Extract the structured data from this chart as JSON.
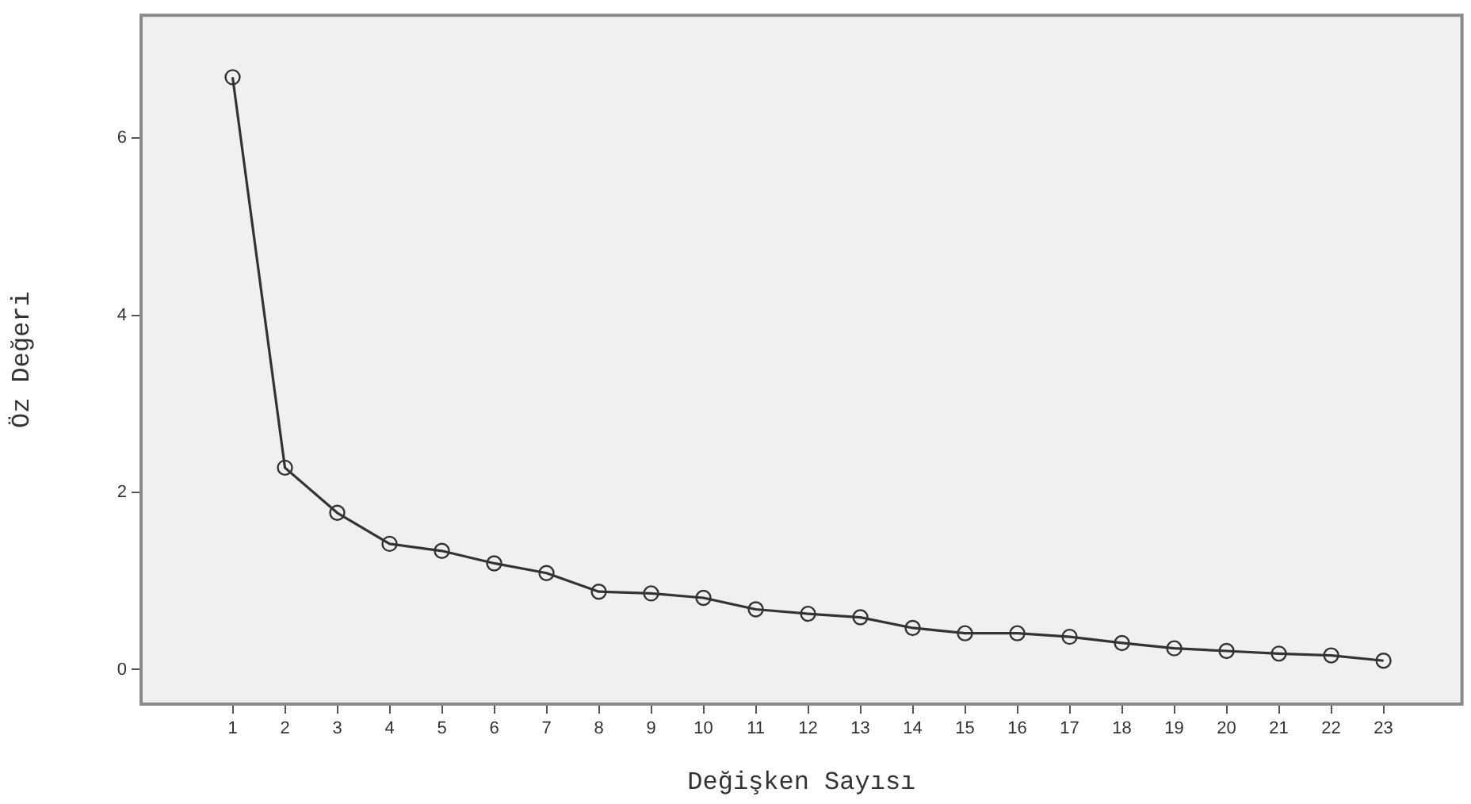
{
  "chart_data": {
    "type": "line",
    "xlabel": "Değişken Sayısı",
    "ylabel": "Öz Değeri",
    "x": [
      1,
      2,
      3,
      4,
      5,
      6,
      7,
      8,
      9,
      10,
      11,
      12,
      13,
      14,
      15,
      16,
      17,
      18,
      19,
      20,
      21,
      22,
      23
    ],
    "series": [
      {
        "color": "#333333",
        "values": [
          6.69,
          2.28,
          1.77,
          1.42,
          1.34,
          1.2,
          1.09,
          0.88,
          0.86,
          0.81,
          0.68,
          0.63,
          0.59,
          0.47,
          0.41,
          0.41,
          0.37,
          0.3,
          0.24,
          0.21,
          0.18,
          0.16,
          0.1
        ]
      }
    ],
    "xlim": [
      -0.75,
      24.5
    ],
    "xticks": [
      1,
      2,
      3,
      4,
      5,
      6,
      7,
      8,
      9,
      10,
      11,
      12,
      13,
      14,
      15,
      16,
      17,
      18,
      19,
      20,
      21,
      22,
      23
    ],
    "ylim": [
      -0.39,
      7.39
    ],
    "yticks": [
      0,
      2,
      4,
      6
    ],
    "grid": false,
    "legend": false,
    "marker": "circle",
    "line_style": "solid"
  }
}
